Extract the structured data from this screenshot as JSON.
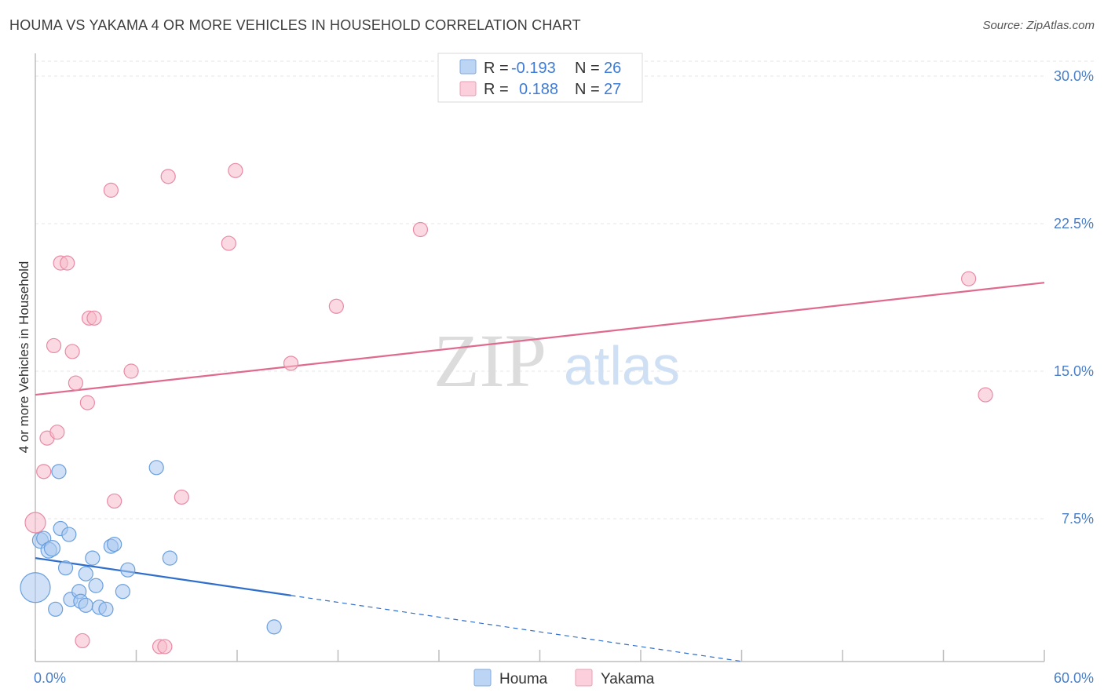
{
  "header": {
    "title": "HOUMA VS YAKAMA 4 OR MORE VEHICLES IN HOUSEHOLD CORRELATION CHART",
    "source": "Source: ZipAtlas.com"
  },
  "watermark": {
    "zip": "ZIP",
    "atlas": "atlas"
  },
  "legend_top": {
    "r_label": "R =",
    "n_label": "N =",
    "rows": [
      {
        "series": "Houma",
        "r": "-0.193",
        "n": "26",
        "color": "#a9c8f0"
      },
      {
        "series": "Yakama",
        "r": "0.188",
        "n": "27",
        "color": "#f7b9cb"
      }
    ]
  },
  "chart_data": {
    "type": "scatter",
    "title": "HOUMA VS YAKAMA 4 OR MORE VEHICLES IN HOUSEHOLD CORRELATION CHART",
    "xlabel": "",
    "ylabel": "4 or more Vehicles in Household",
    "xlim": [
      0,
      60
    ],
    "ylim": [
      0,
      30
    ],
    "x_ticks": [
      "0.0%",
      "60.0%"
    ],
    "y_ticks": [
      {
        "value": 7.5,
        "label": "7.5%"
      },
      {
        "value": 15.0,
        "label": "15.0%"
      },
      {
        "value": 22.5,
        "label": "22.5%"
      },
      {
        "value": 30.0,
        "label": "30.0%"
      }
    ],
    "grid": true,
    "legend_position": "bottom-center",
    "series": [
      {
        "name": "Houma",
        "color": "#a9c8f0",
        "stroke": "#6a9fdd",
        "line_color": "#2f6fcb",
        "trend": {
          "x0": 0,
          "y0": 5.5,
          "x1": 15.2,
          "y1": 3.6,
          "dash_to_x": 60,
          "dash_to_y": -2.0
        },
        "points": [
          [
            0.0,
            4.0,
            18
          ],
          [
            0.3,
            6.4,
            9
          ],
          [
            0.5,
            6.5,
            8
          ],
          [
            0.8,
            5.9,
            9
          ],
          [
            1.0,
            6.0,
            9
          ],
          [
            1.2,
            2.9,
            8
          ],
          [
            1.4,
            9.9,
            8
          ],
          [
            1.5,
            7.0,
            8
          ],
          [
            1.8,
            5.0,
            8
          ],
          [
            2.0,
            6.7,
            8
          ],
          [
            2.1,
            3.4,
            8
          ],
          [
            2.6,
            3.8,
            8
          ],
          [
            2.7,
            3.3,
            8
          ],
          [
            3.0,
            4.7,
            8
          ],
          [
            3.0,
            3.1,
            8
          ],
          [
            3.4,
            5.5,
            8
          ],
          [
            3.6,
            4.1,
            8
          ],
          [
            3.8,
            3.0,
            8
          ],
          [
            4.2,
            2.9,
            8
          ],
          [
            4.5,
            6.1,
            8
          ],
          [
            4.7,
            6.2,
            8
          ],
          [
            5.2,
            3.8,
            8
          ],
          [
            5.5,
            4.9,
            8
          ],
          [
            7.2,
            10.1,
            8
          ],
          [
            8.0,
            5.5,
            8
          ],
          [
            14.2,
            2.0,
            8
          ]
        ]
      },
      {
        "name": "Yakama",
        "color": "#f7b9cb",
        "stroke": "#e98aa5",
        "line_color": "#e06a8e",
        "trend": {
          "x0": 0,
          "y0": 13.8,
          "x1": 60,
          "y1": 19.5
        },
        "points": [
          [
            0.0,
            7.3,
            12
          ],
          [
            0.5,
            9.9,
            8
          ],
          [
            0.7,
            11.6,
            8
          ],
          [
            1.1,
            16.3,
            8
          ],
          [
            1.3,
            11.9,
            8
          ],
          [
            1.5,
            20.5,
            8
          ],
          [
            1.9,
            20.5,
            8
          ],
          [
            2.2,
            16.0,
            8
          ],
          [
            2.4,
            14.4,
            8
          ],
          [
            2.8,
            1.3,
            8
          ],
          [
            3.1,
            13.4,
            8
          ],
          [
            3.2,
            17.7,
            8
          ],
          [
            3.5,
            17.7,
            8
          ],
          [
            4.5,
            24.2,
            8
          ],
          [
            4.7,
            8.4,
            8
          ],
          [
            5.7,
            15.0,
            8
          ],
          [
            7.4,
            1.0,
            8
          ],
          [
            7.7,
            1.0,
            8
          ],
          [
            7.9,
            24.9,
            8
          ],
          [
            8.7,
            8.6,
            8
          ],
          [
            11.5,
            21.5,
            8
          ],
          [
            11.9,
            25.2,
            8
          ],
          [
            15.2,
            15.4,
            8
          ],
          [
            17.9,
            18.3,
            8
          ],
          [
            22.9,
            22.2,
            8
          ],
          [
            55.5,
            19.7,
            8
          ],
          [
            56.5,
            13.8,
            8
          ]
        ]
      }
    ]
  },
  "legend_bottom": {
    "items": [
      "Houma",
      "Yakama"
    ]
  }
}
